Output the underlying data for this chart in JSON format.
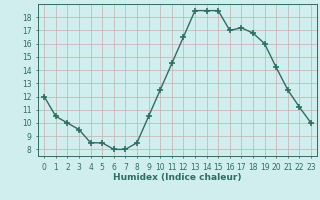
{
  "x": [
    0,
    1,
    2,
    3,
    4,
    5,
    6,
    7,
    8,
    9,
    10,
    11,
    12,
    13,
    14,
    15,
    16,
    17,
    18,
    19,
    20,
    21,
    22,
    23
  ],
  "y": [
    12,
    10.5,
    10,
    9.5,
    8.5,
    8.5,
    8,
    8,
    8.5,
    10.5,
    12.5,
    14.5,
    16.5,
    18.5,
    18.5,
    18.5,
    17,
    17.2,
    16.8,
    16,
    14.2,
    12.5,
    11.2,
    10
  ],
  "line_color": "#2e6e62",
  "marker": "+",
  "marker_size": 4,
  "bg_color": "#d0eeee",
  "grid_color": "#c8b8b8",
  "xlabel": "Humidex (Indice chaleur)",
  "ylabel": "",
  "xlim": [
    -0.5,
    23.5
  ],
  "ylim": [
    7.5,
    19.0
  ],
  "yticks": [
    8,
    9,
    10,
    11,
    12,
    13,
    14,
    15,
    16,
    17,
    18
  ],
  "xticks": [
    0,
    1,
    2,
    3,
    4,
    5,
    6,
    7,
    8,
    9,
    10,
    11,
    12,
    13,
    14,
    15,
    16,
    17,
    18,
    19,
    20,
    21,
    22,
    23
  ],
  "tick_color": "#2e6e62",
  "label_fontsize": 6.5,
  "tick_fontsize": 5.5,
  "linewidth": 1.0,
  "marker_linewidth": 1.2
}
